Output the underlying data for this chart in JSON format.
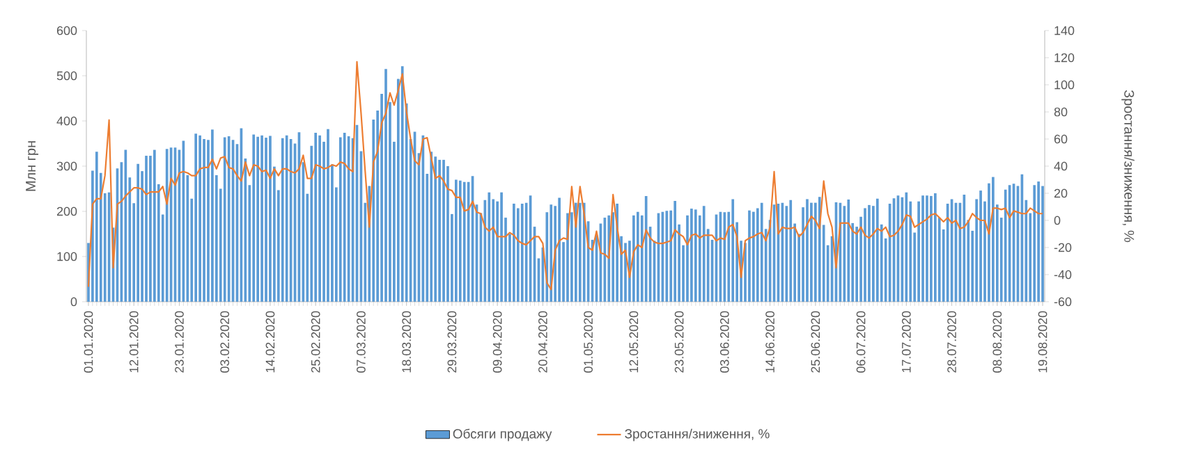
{
  "chart_data": {
    "type": "bar",
    "ylabel": "Млн грн",
    "y2label": "Зростання/зниження, %",
    "categories": [
      "01.01.2020",
      null,
      null,
      null,
      null,
      null,
      null,
      null,
      null,
      null,
      null,
      "12.01.2020",
      null,
      null,
      null,
      null,
      null,
      null,
      null,
      null,
      null,
      null,
      "23.01.2020",
      null,
      null,
      null,
      null,
      null,
      null,
      null,
      null,
      null,
      null,
      "03.02.2020",
      null,
      null,
      null,
      null,
      null,
      null,
      null,
      null,
      null,
      null,
      "14.02.2020",
      null,
      null,
      null,
      null,
      null,
      null,
      null,
      null,
      null,
      null,
      "25.02.2020",
      null,
      null,
      null,
      null,
      null,
      null,
      null,
      null,
      null,
      null,
      "07.03.2020",
      null,
      null,
      null,
      null,
      null,
      null,
      null,
      null,
      null,
      null,
      "18.03.2020",
      null,
      null,
      null,
      null,
      null,
      null,
      null,
      null,
      null,
      null,
      "29.03.2020",
      null,
      null,
      null,
      null,
      null,
      null,
      null,
      null,
      null,
      null,
      "09.04.2020",
      null,
      null,
      null,
      null,
      null,
      null,
      null,
      null,
      null,
      null,
      "20.04.2020",
      null,
      null,
      null,
      null,
      null,
      null,
      null,
      null,
      null,
      null,
      "01.05.2020",
      null,
      null,
      null,
      null,
      null,
      null,
      null,
      null,
      null,
      null,
      "12.05.2020",
      null,
      null,
      null,
      null,
      null,
      null,
      null,
      null,
      null,
      null,
      "23.05.2020",
      null,
      null,
      null,
      null,
      null,
      null,
      null,
      null,
      null,
      null,
      "03.06.2020",
      null,
      null,
      null,
      null,
      null,
      null,
      null,
      null,
      null,
      null,
      "14.06.2020",
      null,
      null,
      null,
      null,
      null,
      null,
      null,
      null,
      null,
      null,
      "25.06.2020",
      null,
      null,
      null,
      null,
      null,
      null,
      null,
      null,
      null,
      null,
      "06.07.2020",
      null,
      null,
      null,
      null,
      null,
      null,
      null,
      null,
      null,
      null,
      "17.07.2020",
      null,
      null,
      null,
      null,
      null,
      null,
      null,
      null,
      null,
      null,
      "28.07.2020",
      null,
      null,
      null,
      null,
      null,
      null,
      null,
      null,
      null,
      null,
      "08.08.2020",
      null,
      null,
      null,
      null,
      null,
      null,
      null,
      null,
      null,
      null,
      "19.08.2020"
    ],
    "series": [
      {
        "name": "Обсяги продажу",
        "color": "#5b9bd5",
        "values": [
          130,
          290,
          332,
          285,
          240,
          242,
          164,
          295,
          309,
          336,
          275,
          218,
          305,
          289,
          323,
          323,
          336,
          260,
          193,
          338,
          341,
          341,
          336,
          356,
          280,
          228,
          372,
          368,
          360,
          358,
          381,
          280,
          250,
          364,
          366,
          358,
          349,
          384,
          317,
          258,
          370,
          365,
          368,
          363,
          367,
          299,
          247,
          362,
          368,
          360,
          350,
          375,
          309,
          239,
          345,
          374,
          368,
          354,
          382,
          304,
          253,
          364,
          374,
          366,
          362,
          391,
          333,
          219,
          256,
          403,
          423,
          460,
          515,
          442,
          354,
          493,
          521,
          439,
          360,
          376,
          329,
          368,
          283,
          332,
          321,
          314,
          314,
          300,
          194,
          270,
          268,
          265,
          265,
          278,
          215,
          196,
          225,
          242,
          227,
          222,
          242,
          186,
          150,
          217,
          207,
          217,
          219,
          235,
          166,
          96,
          120,
          198,
          215,
          212,
          230,
          132,
          196,
          198,
          219,
          219,
          219,
          178,
          137,
          147,
          173,
          186,
          191,
          198,
          217,
          145,
          130,
          135,
          191,
          199,
          191,
          234,
          166,
          135,
          196,
          199,
          201,
          202,
          223,
          171,
          125,
          191,
          206,
          204,
          191,
          212,
          161,
          137,
          193,
          199,
          198,
          199,
          227,
          176,
          135,
          130,
          202,
          199,
          207,
          219,
          161,
          181,
          215,
          217,
          219,
          212,
          225,
          173,
          150,
          209,
          227,
          219,
          219,
          232,
          170,
          125,
          145,
          220,
          219,
          212,
          226,
          174,
          166,
          188,
          207,
          214,
          212,
          228,
          171,
          140,
          217,
          229,
          235,
          231,
          242,
          222,
          153,
          222,
          235,
          235,
          234,
          240,
          186,
          160,
          217,
          227,
          219,
          219,
          237,
          181,
          157,
          227,
          246,
          222,
          262,
          276,
          215,
          186,
          248,
          258,
          261,
          256,
          282,
          225,
          196,
          258,
          266,
          256
        ]
      },
      {
        "name": "Зростання/зниження, %",
        "type": "line",
        "axis": "y2",
        "color": "#ed7d31",
        "values": [
          -49,
          12,
          16,
          16,
          33,
          74,
          -35,
          12,
          14,
          18,
          21,
          24,
          24,
          23,
          19,
          21,
          21,
          21,
          25,
          12,
          31,
          26,
          35,
          36,
          35,
          33,
          33,
          38,
          39,
          39,
          45,
          38,
          46,
          47,
          39,
          38,
          33,
          29,
          43,
          33,
          41,
          40,
          36,
          37,
          31,
          38,
          33,
          38,
          38,
          36,
          35,
          38,
          48,
          31,
          31,
          41,
          40,
          38,
          39,
          41,
          40,
          43,
          42,
          38,
          36,
          117,
          79,
          36,
          -5,
          43,
          51,
          72,
          79,
          94,
          85,
          96,
          108,
          80,
          60,
          44,
          41,
          60,
          61,
          46,
          31,
          33,
          29,
          23,
          22,
          17,
          17,
          7,
          8,
          14,
          6,
          5,
          -5,
          -8,
          -5,
          -12,
          -12,
          -12,
          -9,
          -11,
          -15,
          -17,
          -18,
          -15,
          -12,
          -12,
          -17,
          -46,
          -51,
          -22,
          -15,
          -13,
          -14,
          25,
          -5,
          25,
          5,
          -20,
          -22,
          -8,
          -24,
          -25,
          -28,
          19,
          -5,
          -25,
          -22,
          -42,
          -23,
          -18,
          -20,
          -7,
          -13,
          -16,
          -17,
          -17,
          -16,
          -15,
          -7,
          -10,
          -12,
          -18,
          -11,
          -10,
          -13,
          -11,
          -11,
          -11,
          -15,
          -13,
          -14,
          -5,
          -3,
          -12,
          -42,
          -15,
          -13,
          -12,
          -10,
          -9,
          -15,
          -5,
          36,
          -10,
          -5,
          -6,
          -6,
          -5,
          -12,
          -9,
          -3,
          3,
          0,
          -6,
          29,
          5,
          -5,
          -35,
          -2,
          -2,
          -2,
          -8,
          -10,
          -5,
          -11,
          -13,
          -10,
          -6,
          -8,
          -5,
          -12,
          -11,
          -8,
          -3,
          4,
          3,
          -5,
          -3,
          -1,
          1,
          4,
          5,
          2,
          -1,
          2,
          -2,
          0,
          -6,
          -5,
          -1,
          5,
          2,
          0,
          0,
          -10,
          9,
          9,
          8,
          9,
          2,
          7,
          6,
          5,
          5,
          9,
          7,
          5,
          5
        ]
      }
    ],
    "ylim": [
      0,
      600
    ],
    "yticks": [
      0,
      100,
      200,
      300,
      400,
      500,
      600
    ],
    "y2lim": [
      -60,
      140
    ],
    "y2ticks": [
      -60,
      -40,
      -20,
      0,
      20,
      40,
      60,
      80,
      100,
      120,
      140
    ],
    "legend": "bottom"
  }
}
